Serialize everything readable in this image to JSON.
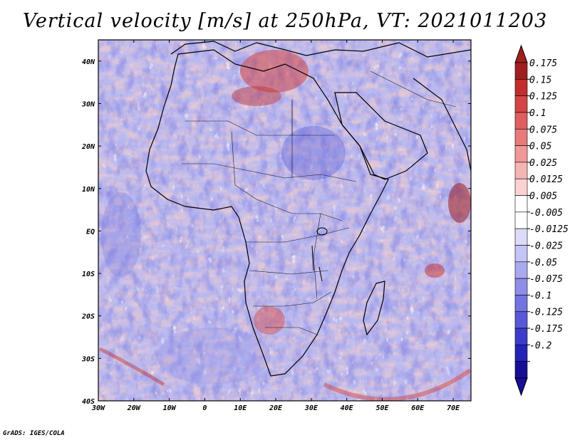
{
  "title": "Vertical velocity [m/s] at 250hPa, VT: 2021011203",
  "credit": "GrADS: IGES/COLA",
  "map": {
    "lon_range": [
      -30,
      75
    ],
    "lat_range": [
      -40,
      45
    ],
    "lon_ticks": [
      {
        "value": -30,
        "label": "30W"
      },
      {
        "value": -20,
        "label": "20W"
      },
      {
        "value": -10,
        "label": "10W"
      },
      {
        "value": 0,
        "label": "0"
      },
      {
        "value": 10,
        "label": "10E"
      },
      {
        "value": 20,
        "label": "20E"
      },
      {
        "value": 30,
        "label": "30E"
      },
      {
        "value": 40,
        "label": "40E"
      },
      {
        "value": 50,
        "label": "50E"
      },
      {
        "value": 60,
        "label": "60E"
      },
      {
        "value": 70,
        "label": "70E"
      }
    ],
    "lat_ticks": [
      {
        "value": 40,
        "label": "40N"
      },
      {
        "value": 30,
        "label": "30N"
      },
      {
        "value": 20,
        "label": "20N"
      },
      {
        "value": 10,
        "label": "10N"
      },
      {
        "value": 0,
        "label": "EQ"
      },
      {
        "value": -10,
        "label": "10S"
      },
      {
        "value": -20,
        "label": "20S"
      },
      {
        "value": -30,
        "label": "30S"
      },
      {
        "value": -40,
        "label": "40S"
      }
    ]
  },
  "colorbar": {
    "labels": [
      "0.175",
      "0.15",
      "0.125",
      "0.1",
      "0.075",
      "0.05",
      "0.025",
      "0.0125",
      "0.005",
      "-0.005",
      "-0.0125",
      "-0.025",
      "-0.05",
      "-0.075",
      "-0.1",
      "-0.125",
      "-0.175",
      "-0.2"
    ],
    "colors": [
      "#a01e1e",
      "#c22e2e",
      "#d24545",
      "#df5e5e",
      "#e87a7a",
      "#f09898",
      "#f5b5b5",
      "#fad2d2",
      "#ffffff",
      "#ffffff",
      "#dcdcfa",
      "#c4c4f5",
      "#a9a9ee",
      "#8e8ee8",
      "#7373e2",
      "#5858d8",
      "#3c3cca",
      "#2424b4",
      "#160e96"
    ],
    "top_arrow_color": "#a01e1e",
    "bottom_arrow_color": "#160e96"
  }
}
